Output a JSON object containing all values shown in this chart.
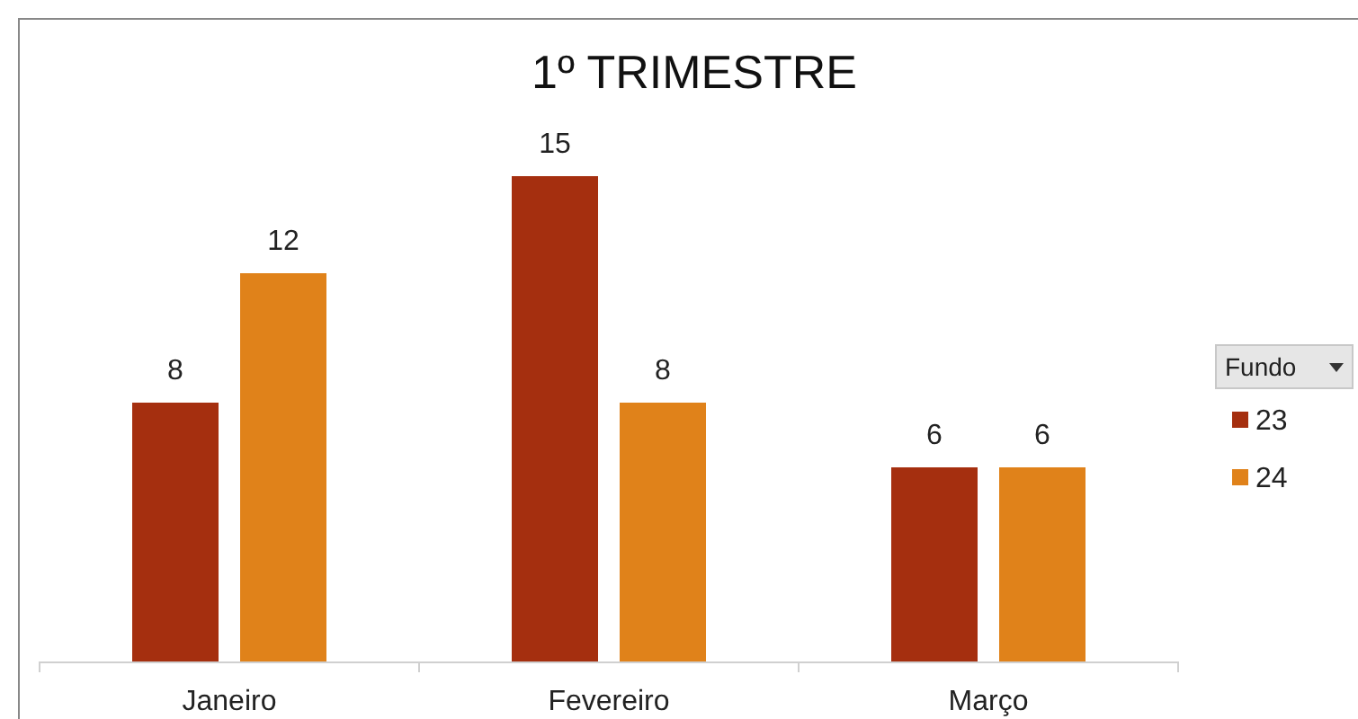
{
  "chart_data": {
    "type": "bar",
    "title": "1º TRIMESTRE",
    "categories": [
      "Janeiro",
      "Fevereiro",
      "Março"
    ],
    "series": [
      {
        "name": "23",
        "color": "#a52f0f",
        "values": [
          8,
          15,
          6
        ]
      },
      {
        "name": "24",
        "color": "#e0821a",
        "values": [
          12,
          8,
          6
        ]
      }
    ],
    "data_labels": true,
    "legend": "right",
    "legend_title": "Fundo"
  }
}
